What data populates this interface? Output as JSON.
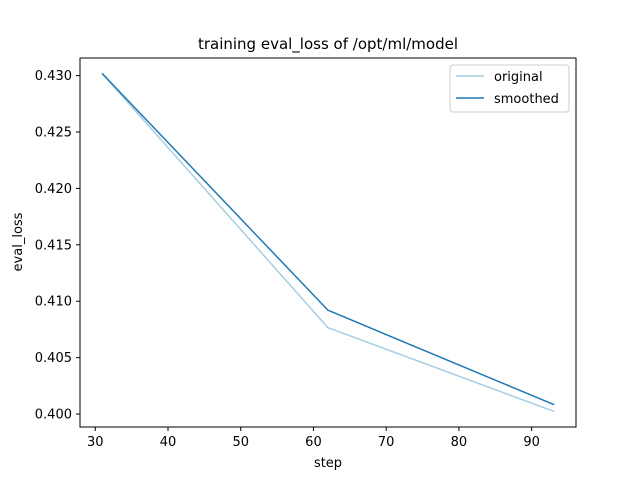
{
  "chart_data": {
    "type": "line",
    "title": "training eval_loss of /opt/ml/model",
    "xlabel": "step",
    "ylabel": "eval_loss",
    "xlim": [
      27.9,
      96.1
    ],
    "ylim": [
      0.39885,
      0.43156
    ],
    "xticks": [
      30,
      40,
      50,
      60,
      70,
      80,
      90
    ],
    "yticks": [
      0.4,
      0.405,
      0.41,
      0.415,
      0.42,
      0.425,
      0.43
    ],
    "ytick_labels": [
      "0.400",
      "0.405",
      "0.410",
      "0.415",
      "0.420",
      "0.425",
      "0.430"
    ],
    "grid": false,
    "legend_position": "upper right",
    "series": [
      {
        "name": "original",
        "color": "#a6cee3",
        "x": [
          31,
          62,
          93
        ],
        "y": [
          0.43015,
          0.40765,
          0.40025
        ]
      },
      {
        "name": "smoothed",
        "color": "#1f78b4",
        "x": [
          31,
          62,
          93
        ],
        "y": [
          0.43015,
          0.4092,
          0.40085
        ]
      }
    ]
  }
}
